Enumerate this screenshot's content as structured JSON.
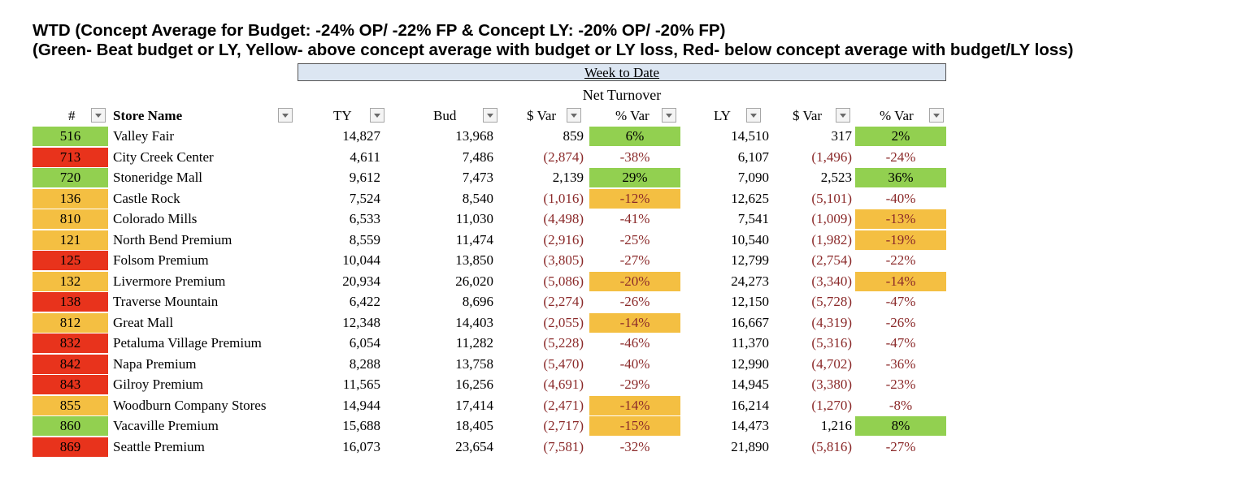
{
  "title": {
    "line1": "WTD (Concept Average for Budget: -24% OP/ -22% FP & Concept LY: -20% OP/ -20% FP)",
    "line2": "(Green- Beat budget or LY, Yellow- above concept average with budget or LY loss, Red- below concept average with budget/LY loss)"
  },
  "section": {
    "label": "Week to Date",
    "subheader": "Net Turnover"
  },
  "headers": {
    "num": "#",
    "store": "Store Name",
    "ty": "TY",
    "bud": "Bud",
    "bud_var": "$ Var",
    "bud_pct": "% Var",
    "ly": "LY",
    "ly_var": "$ Var",
    "ly_pct": "% Var"
  },
  "colors": {
    "green": "#92d050",
    "yellow": "#f4bf42",
    "red": "#e8331c",
    "header_band": "#dce6f2",
    "negative_text": "#8b2a2a"
  },
  "rows": [
    {
      "num": "516",
      "store": "Valley Fair",
      "ty": "14,827",
      "bud": "13,968",
      "bud_var": "859",
      "bud_pct": "6%",
      "ly": "14,510",
      "ly_var": "317",
      "ly_pct": "2%",
      "num_color": "green",
      "bud_pct_color": "green",
      "ly_pct_color": "green"
    },
    {
      "num": "713",
      "store": "City Creek Center",
      "ty": "4,611",
      "bud": "7,486",
      "bud_var": "(2,874)",
      "bud_pct": "-38%",
      "ly": "6,107",
      "ly_var": "(1,496)",
      "ly_pct": "-24%",
      "num_color": "red",
      "bud_pct_color": "",
      "ly_pct_color": ""
    },
    {
      "num": "720",
      "store": "Stoneridge Mall",
      "ty": "9,612",
      "bud": "7,473",
      "bud_var": "2,139",
      "bud_pct": "29%",
      "ly": "7,090",
      "ly_var": "2,523",
      "ly_pct": "36%",
      "num_color": "green",
      "bud_pct_color": "green",
      "ly_pct_color": "green"
    },
    {
      "num": "136",
      "store": "Castle Rock",
      "ty": "7,524",
      "bud": "8,540",
      "bud_var": "(1,016)",
      "bud_pct": "-12%",
      "ly": "12,625",
      "ly_var": "(5,101)",
      "ly_pct": "-40%",
      "num_color": "yellow",
      "bud_pct_color": "yellow",
      "ly_pct_color": ""
    },
    {
      "num": "810",
      "store": "Colorado Mills",
      "ty": "6,533",
      "bud": "11,030",
      "bud_var": "(4,498)",
      "bud_pct": "-41%",
      "ly": "7,541",
      "ly_var": "(1,009)",
      "ly_pct": "-13%",
      "num_color": "yellow",
      "bud_pct_color": "",
      "ly_pct_color": "yellow"
    },
    {
      "num": "121",
      "store": "North Bend Premium",
      "ty": "8,559",
      "bud": "11,474",
      "bud_var": "(2,916)",
      "bud_pct": "-25%",
      "ly": "10,540",
      "ly_var": "(1,982)",
      "ly_pct": "-19%",
      "num_color": "yellow",
      "bud_pct_color": "",
      "ly_pct_color": "yellow"
    },
    {
      "num": "125",
      "store": "Folsom Premium",
      "ty": "10,044",
      "bud": "13,850",
      "bud_var": "(3,805)",
      "bud_pct": "-27%",
      "ly": "12,799",
      "ly_var": "(2,754)",
      "ly_pct": "-22%",
      "num_color": "red",
      "bud_pct_color": "",
      "ly_pct_color": ""
    },
    {
      "num": "132",
      "store": "Livermore Premium",
      "ty": "20,934",
      "bud": "26,020",
      "bud_var": "(5,086)",
      "bud_pct": "-20%",
      "ly": "24,273",
      "ly_var": "(3,340)",
      "ly_pct": "-14%",
      "num_color": "yellow",
      "bud_pct_color": "yellow",
      "ly_pct_color": "yellow"
    },
    {
      "num": "138",
      "store": "Traverse Mountain",
      "ty": "6,422",
      "bud": "8,696",
      "bud_var": "(2,274)",
      "bud_pct": "-26%",
      "ly": "12,150",
      "ly_var": "(5,728)",
      "ly_pct": "-47%",
      "num_color": "red",
      "bud_pct_color": "",
      "ly_pct_color": ""
    },
    {
      "num": "812",
      "store": "Great Mall",
      "ty": "12,348",
      "bud": "14,403",
      "bud_var": "(2,055)",
      "bud_pct": "-14%",
      "ly": "16,667",
      "ly_var": "(4,319)",
      "ly_pct": "-26%",
      "num_color": "yellow",
      "bud_pct_color": "yellow",
      "ly_pct_color": ""
    },
    {
      "num": "832",
      "store": "Petaluma Village Premium",
      "ty": "6,054",
      "bud": "11,282",
      "bud_var": "(5,228)",
      "bud_pct": "-46%",
      "ly": "11,370",
      "ly_var": "(5,316)",
      "ly_pct": "-47%",
      "num_color": "red",
      "bud_pct_color": "",
      "ly_pct_color": ""
    },
    {
      "num": "842",
      "store": "Napa Premium",
      "ty": "8,288",
      "bud": "13,758",
      "bud_var": "(5,470)",
      "bud_pct": "-40%",
      "ly": "12,990",
      "ly_var": "(4,702)",
      "ly_pct": "-36%",
      "num_color": "red",
      "bud_pct_color": "",
      "ly_pct_color": ""
    },
    {
      "num": "843",
      "store": "Gilroy Premium",
      "ty": "11,565",
      "bud": "16,256",
      "bud_var": "(4,691)",
      "bud_pct": "-29%",
      "ly": "14,945",
      "ly_var": "(3,380)",
      "ly_pct": "-23%",
      "num_color": "red",
      "bud_pct_color": "",
      "ly_pct_color": ""
    },
    {
      "num": "855",
      "store": "Woodburn Company Stores",
      "ty": "14,944",
      "bud": "17,414",
      "bud_var": "(2,471)",
      "bud_pct": "-14%",
      "ly": "16,214",
      "ly_var": "(1,270)",
      "ly_pct": "-8%",
      "num_color": "yellow",
      "bud_pct_color": "yellow",
      "ly_pct_color": ""
    },
    {
      "num": "860",
      "store": "Vacaville Premium",
      "ty": "15,688",
      "bud": "18,405",
      "bud_var": "(2,717)",
      "bud_pct": "-15%",
      "ly": "14,473",
      "ly_var": "1,216",
      "ly_pct": "8%",
      "num_color": "green",
      "bud_pct_color": "yellow",
      "ly_pct_color": "green"
    },
    {
      "num": "869",
      "store": "Seattle Premium",
      "ty": "16,073",
      "bud": "23,654",
      "bud_var": "(7,581)",
      "bud_pct": "-32%",
      "ly": "21,890",
      "ly_var": "(5,816)",
      "ly_pct": "-27%",
      "num_color": "red",
      "bud_pct_color": "",
      "ly_pct_color": ""
    }
  ]
}
